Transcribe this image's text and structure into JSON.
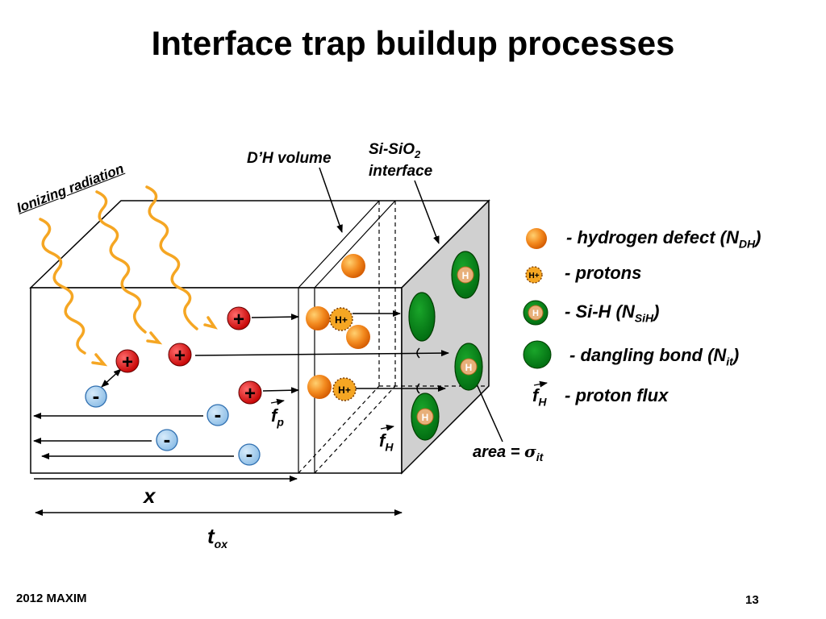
{
  "slide": {
    "title": "Interface trap buildup processes",
    "footer_left": "2012 MAXIM",
    "page_number": "13"
  },
  "diagram": {
    "ionizing_label": "Ionizing radiation",
    "dh_volume_label": "D’H volume",
    "interface_label_line1_main": "Si-SiO",
    "interface_label_line1_sub": "2",
    "interface_label_line2": "interface",
    "area_label_main": "area = ",
    "area_label_sigma": "σ",
    "area_label_sub": "it",
    "x_label": "x",
    "tox_label_main": "t",
    "tox_label_sub": "ox",
    "fp_label_main": "f",
    "fp_label_sub": "p",
    "fh_label_main": "f",
    "fh_label_sub": "H",
    "proton_text": "H+",
    "sih_text": "H",
    "plus_sign": "+",
    "minus_sign": "-"
  },
  "legend": {
    "hydrogen_defect": {
      "text": "- hydrogen defect (N",
      "sub": "DH",
      "close": ")"
    },
    "protons": {
      "text": "- protons",
      "glyph": "H+"
    },
    "sih": {
      "text": "- Si-H (N",
      "sub": "SiH",
      "close": ")",
      "glyph": "H"
    },
    "dangling_bond": {
      "text": "- dangling bond (N",
      "sub": "it",
      "close": ")"
    },
    "proton_flux": {
      "symbol_main": "f",
      "symbol_sub": "H",
      "text": "- proton flux"
    }
  },
  "colors": {
    "radiation": "#f5a623",
    "hole_red": "#e00000",
    "electron_blue": "#9ec9ee",
    "electron_border": "#2f6fb0",
    "green_dark": "#006400",
    "green_mid": "#0a8a1a",
    "interface_face": "#d0d0d0",
    "orange": "#f07a10",
    "sih_inner": "#e8b07a"
  }
}
